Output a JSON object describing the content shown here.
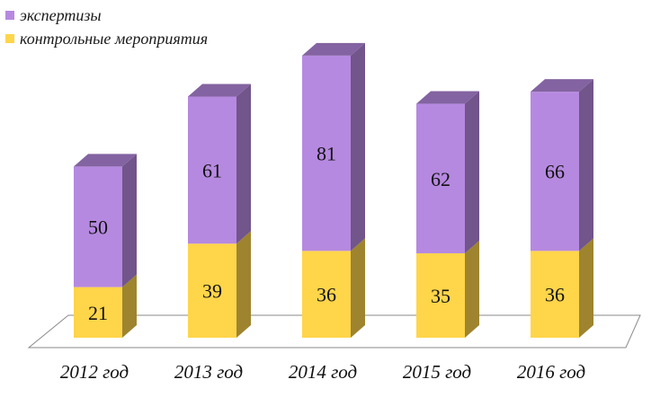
{
  "chart_data": {
    "type": "bar",
    "stacked": true,
    "three_d": true,
    "categories": [
      "2012 год",
      "2013 год",
      "2014 год",
      "2015 год",
      "2016 год"
    ],
    "series": [
      {
        "name": "контрольные мероприятия",
        "values": [
          21,
          39,
          36,
          35,
          36
        ],
        "color": "#FFD54A"
      },
      {
        "name": "экспертизы",
        "values": [
          50,
          61,
          81,
          62,
          66
        ],
        "color": "#B689E0"
      }
    ],
    "data_labels": true,
    "legend": "top-left",
    "grid": false
  }
}
